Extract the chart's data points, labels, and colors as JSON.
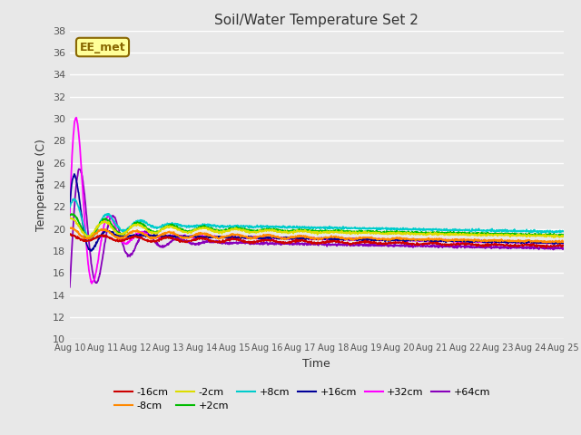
{
  "title": "Soil/Water Temperature Set 2",
  "xlabel": "Time",
  "ylabel": "Temperature (C)",
  "ylim": [
    10,
    38
  ],
  "num_points": 1500,
  "series": [
    {
      "label": "-16cm",
      "color": "#cc0000",
      "base": 19.2,
      "amp0": 0.25,
      "decay": 0.008,
      "phase": 1.57,
      "freq": 1.0
    },
    {
      "label": "-8cm",
      "color": "#ff8800",
      "base": 19.6,
      "amp0": 0.5,
      "decay": 0.015,
      "phase": 1.4,
      "freq": 1.0
    },
    {
      "label": "-2cm",
      "color": "#dddd00",
      "base": 20.1,
      "amp0": 0.9,
      "decay": 0.025,
      "phase": 1.2,
      "freq": 1.0
    },
    {
      "label": "+2cm",
      "color": "#00bb00",
      "base": 20.2,
      "amp0": 1.2,
      "decay": 0.03,
      "phase": 1.0,
      "freq": 1.0
    },
    {
      "label": "+8cm",
      "color": "#00cccc",
      "base": 20.5,
      "amp0": 2.5,
      "decay": 0.06,
      "phase": 0.6,
      "freq": 1.0
    },
    {
      "label": "+16cm",
      "color": "#000099",
      "base": 19.5,
      "amp0": 8.5,
      "decay": 0.18,
      "phase": 0.3,
      "freq": 1.0
    },
    {
      "label": "+32cm",
      "color": "#ff00ff",
      "base": 19.5,
      "amp0": 15.5,
      "decay": 0.12,
      "phase": 0.1,
      "freq": 1.0
    },
    {
      "label": "+64cm",
      "color": "#8800bb",
      "base": 19.0,
      "amp0": 9.0,
      "decay": 0.07,
      "phase": -0.5,
      "freq": 1.0
    }
  ],
  "watermark_text": "EE_met",
  "watermark_bg": "#ffff99",
  "watermark_border": "#886600",
  "plot_bg_color": "#e8e8e8",
  "grid_color": "#ffffff",
  "tick_label_color": "#555555",
  "title_color": "#333333",
  "legend_entries": [
    [
      "-16cm",
      "#cc0000"
    ],
    [
      "-8cm",
      "#ff8800"
    ],
    [
      "-2cm",
      "#dddd00"
    ],
    [
      "+2cm",
      "#00bb00"
    ],
    [
      "+8cm",
      "#00cccc"
    ],
    [
      "+16cm",
      "#000099"
    ],
    [
      "+32cm",
      "#ff00ff"
    ],
    [
      "+64cm",
      "#8800bb"
    ]
  ]
}
